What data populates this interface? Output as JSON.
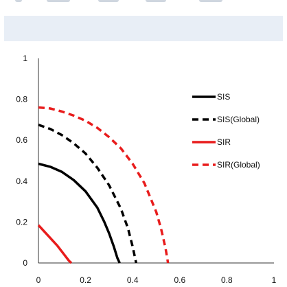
{
  "chart_data": {
    "type": "line",
    "title": "",
    "xlabel": "",
    "ylabel": "",
    "xlim": [
      0,
      1
    ],
    "ylim": [
      0,
      1
    ],
    "xticks": [
      0,
      0.2,
      0.4,
      0.6,
      0.8,
      1
    ],
    "xtick_labels": [
      "0",
      "0.2",
      "0.4",
      "0.6",
      "0.8",
      "1"
    ],
    "yticks": [
      0,
      0.2,
      0.4,
      0.6,
      0.8,
      1
    ],
    "ytick_labels": [
      "0",
      "0.2",
      "0.4",
      "0.6",
      "0.8",
      "1"
    ],
    "grid": false,
    "legend_position": "top-right",
    "series": [
      {
        "name": "SIS",
        "color": "#000000",
        "style": "solid",
        "x": [
          0,
          0.05,
          0.1,
          0.15,
          0.2,
          0.25,
          0.28,
          0.3,
          0.32,
          0.335,
          0.345
        ],
        "y": [
          0.485,
          0.47,
          0.445,
          0.405,
          0.35,
          0.27,
          0.2,
          0.145,
          0.08,
          0.025,
          0
        ]
      },
      {
        "name": "SIS(Global)",
        "color": "#000000",
        "style": "dashed",
        "x": [
          0,
          0.05,
          0.1,
          0.15,
          0.2,
          0.25,
          0.3,
          0.35,
          0.38,
          0.4,
          0.415
        ],
        "y": [
          0.675,
          0.655,
          0.625,
          0.585,
          0.535,
          0.465,
          0.38,
          0.265,
          0.17,
          0.08,
          0
        ]
      },
      {
        "name": "SIR",
        "color": "#e81c1c",
        "style": "solid",
        "x": [
          0,
          0.04,
          0.08,
          0.11,
          0.13,
          0.14
        ],
        "y": [
          0.185,
          0.135,
          0.085,
          0.04,
          0.01,
          0
        ]
      },
      {
        "name": "SIR(Global)",
        "color": "#e81c1c",
        "style": "dashed",
        "x": [
          0,
          0.05,
          0.1,
          0.15,
          0.2,
          0.25,
          0.3,
          0.35,
          0.4,
          0.45,
          0.5,
          0.52,
          0.54,
          0.55
        ],
        "y": [
          0.76,
          0.755,
          0.74,
          0.72,
          0.695,
          0.66,
          0.615,
          0.56,
          0.485,
          0.39,
          0.25,
          0.17,
          0.07,
          0
        ]
      }
    ]
  }
}
